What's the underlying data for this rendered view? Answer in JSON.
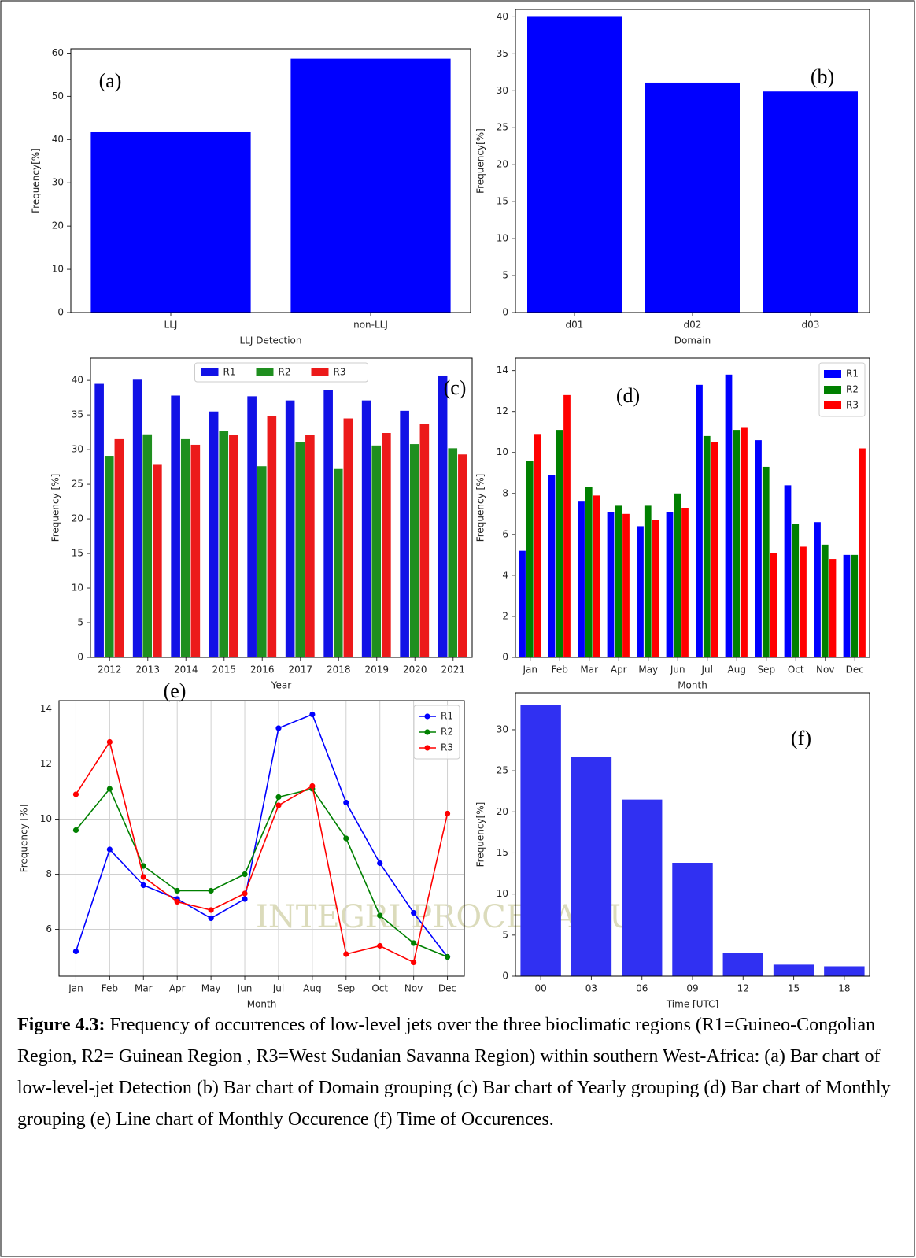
{
  "chart_data": [
    {
      "type": "bar",
      "annotation": "(a)",
      "categories": [
        "LLJ",
        "non-LLJ"
      ],
      "values": [
        41.7,
        58.7
      ],
      "color": "#0000ff",
      "xlabel": "LLJ Detection",
      "ylabel": "Frequency[%]",
      "ylim": [
        0,
        61
      ],
      "yticks": [
        0,
        10,
        20,
        30,
        40,
        50,
        60
      ],
      "grid": false
    },
    {
      "type": "bar",
      "annotation": "(b)",
      "categories": [
        "d01",
        "d02",
        "d03"
      ],
      "values": [
        40.1,
        31.1,
        29.9
      ],
      "color": "#0000ff",
      "xlabel": "Domain",
      "ylabel": "Frequency[%]",
      "ylim": [
        0,
        41
      ],
      "yticks": [
        0,
        5,
        10,
        15,
        20,
        25,
        30,
        35,
        40
      ],
      "grid": false
    },
    {
      "type": "bar",
      "annotation": "(c)",
      "categories": [
        "2012",
        "2013",
        "2014",
        "2015",
        "2016",
        "2017",
        "2018",
        "2019",
        "2020",
        "2021"
      ],
      "series": [
        {
          "name": "R1",
          "color": "#1212e6",
          "values": [
            39.5,
            40.1,
            37.8,
            35.5,
            37.7,
            37.1,
            38.6,
            37.1,
            35.6,
            40.7
          ]
        },
        {
          "name": "R2",
          "color": "#1f8f1f",
          "values": [
            29.1,
            32.2,
            31.5,
            32.7,
            27.6,
            31.1,
            27.2,
            30.6,
            30.8,
            30.2
          ]
        },
        {
          "name": "R3",
          "color": "#ec1a1a",
          "values": [
            31.5,
            27.8,
            30.7,
            32.1,
            34.9,
            32.1,
            34.5,
            32.4,
            33.7,
            29.3
          ]
        }
      ],
      "xlabel": "Year",
      "ylabel": "Frequency [%]",
      "ylim": [
        0,
        43.2
      ],
      "yticks": [
        0,
        5,
        10,
        15,
        20,
        25,
        30,
        35,
        40
      ],
      "legend": "upper center",
      "grid": false
    },
    {
      "type": "bar",
      "annotation": "(d)",
      "categories": [
        "Jan",
        "Feb",
        "Mar",
        "Apr",
        "May",
        "Jun",
        "Jul",
        "Aug",
        "Sep",
        "Oct",
        "Nov",
        "Dec"
      ],
      "series": [
        {
          "name": "R1",
          "color": "#0000ff",
          "values": [
            5.2,
            8.9,
            7.6,
            7.1,
            6.4,
            7.1,
            13.3,
            13.8,
            10.6,
            8.4,
            6.6,
            5.0
          ]
        },
        {
          "name": "R2",
          "color": "#008000",
          "values": [
            9.6,
            11.1,
            8.3,
            7.4,
            7.4,
            8.0,
            10.8,
            11.1,
            9.3,
            6.5,
            5.5,
            5.0
          ]
        },
        {
          "name": "R3",
          "color": "#ff0000",
          "values": [
            10.9,
            12.8,
            7.9,
            7.0,
            6.7,
            7.3,
            10.5,
            11.2,
            5.1,
            5.4,
            4.8,
            10.2
          ]
        }
      ],
      "xlabel": "Month",
      "ylabel": "Frequency [%]",
      "ylim": [
        0,
        14.6
      ],
      "yticks": [
        0,
        2,
        4,
        6,
        8,
        10,
        12,
        14
      ],
      "legend": "upper right",
      "grid": false
    },
    {
      "type": "line",
      "annotation": "(e)",
      "categories": [
        "Jan",
        "Feb",
        "Mar",
        "Apr",
        "May",
        "Jun",
        "Jul",
        "Aug",
        "Sep",
        "Oct",
        "Nov",
        "Dec"
      ],
      "series": [
        {
          "name": "R1",
          "color": "#0000ff",
          "values": [
            5.2,
            8.9,
            7.6,
            7.1,
            6.4,
            7.1,
            13.3,
            13.8,
            10.6,
            8.4,
            6.6,
            5.0
          ]
        },
        {
          "name": "R2",
          "color": "#008000",
          "values": [
            9.6,
            11.1,
            8.3,
            7.4,
            7.4,
            8.0,
            10.8,
            11.1,
            9.3,
            6.5,
            5.5,
            5.0
          ]
        },
        {
          "name": "R3",
          "color": "#ff0000",
          "values": [
            10.9,
            12.8,
            7.9,
            7.0,
            6.7,
            7.3,
            10.5,
            11.2,
            5.1,
            5.4,
            4.8,
            10.2
          ]
        }
      ],
      "xlabel": "Month",
      "ylabel": "Frequency [%]",
      "ylim": [
        4.3,
        14.3
      ],
      "yticks": [
        6,
        8,
        10,
        12,
        14
      ],
      "legend": "upper right",
      "grid": true
    },
    {
      "type": "bar",
      "annotation": "(f)",
      "categories": [
        "00",
        "03",
        "06",
        "09",
        "12",
        "15",
        "18"
      ],
      "values": [
        33.0,
        26.7,
        21.5,
        13.8,
        2.8,
        1.4,
        1.2
      ],
      "color": "#3030f2",
      "xlabel": "Time [UTC]",
      "ylabel": "Frequency[%]",
      "ylim": [
        0,
        34.5
      ],
      "yticks": [
        0,
        5,
        10,
        15,
        20,
        25,
        30
      ],
      "grid": false
    }
  ],
  "watermark": "INTEGRI PROCEDAMUS",
  "caption": {
    "label": "Figure 4.3:",
    "text": "Frequency of occurrences of low-level jets over the three bioclimatic regions (R1=Guineo-Congolian Region, R2= Guinean Region , R3=West Sudanian Savanna Region) within southern West-Africa: (a) Bar chart of low-level-jet Detection (b) Bar chart of Domain grouping (c) Bar chart of Yearly grouping (d) Bar chart of Monthly grouping (e) Line chart of Monthly Occurence (f) Time of Occurences."
  }
}
